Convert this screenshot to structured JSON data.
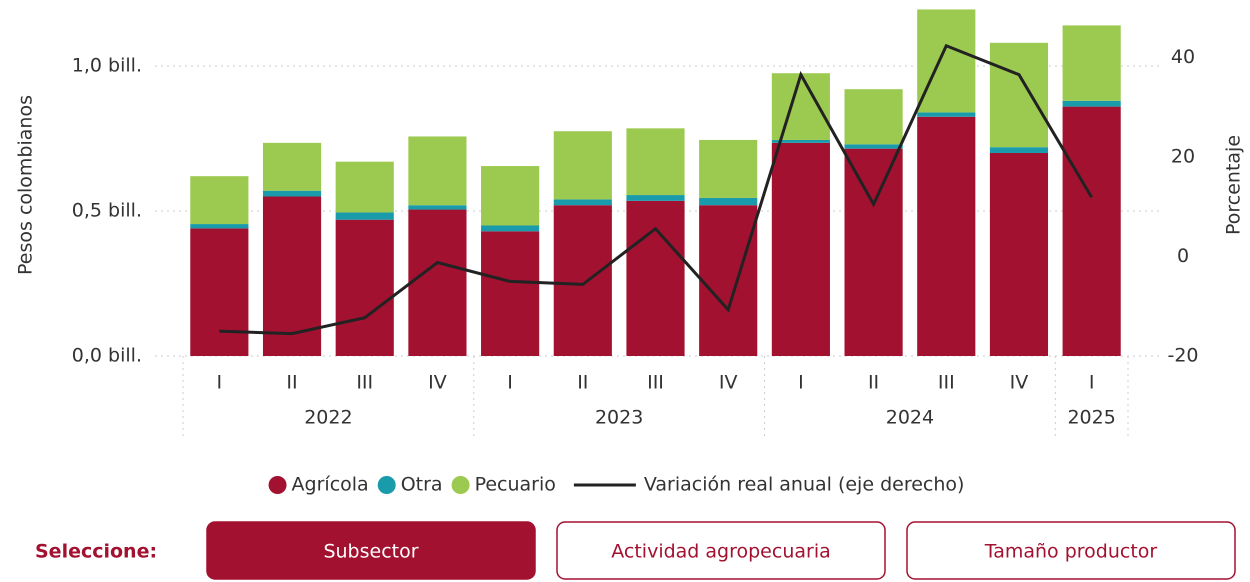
{
  "chart_data": {
    "type": "bar",
    "stacked": true,
    "y_label": "Pesos colombianos",
    "y2_label": "Porcentaje",
    "categories": [
      "I",
      "II",
      "III",
      "IV",
      "I",
      "II",
      "III",
      "IV",
      "I",
      "II",
      "III",
      "IV",
      "I"
    ],
    "groups": [
      "2022",
      null,
      null,
      null,
      "2023",
      null,
      null,
      null,
      "2024",
      null,
      null,
      null,
      "2025"
    ],
    "series": [
      {
        "name": "Agrícola",
        "color": "#a31130",
        "values": [
          0.44,
          0.55,
          0.47,
          0.505,
          0.43,
          0.52,
          0.535,
          0.52,
          0.735,
          0.715,
          0.825,
          0.7,
          0.86
        ]
      },
      {
        "name": "Otra",
        "color": "#1a9bab",
        "values": [
          0.015,
          0.02,
          0.025,
          0.015,
          0.02,
          0.02,
          0.02,
          0.025,
          0.01,
          0.015,
          0.015,
          0.02,
          0.02
        ]
      },
      {
        "name": "Pecuario",
        "color": "#9cc94f",
        "values": [
          0.165,
          0.165,
          0.175,
          0.237,
          0.205,
          0.235,
          0.23,
          0.2,
          0.23,
          0.19,
          0.355,
          0.36,
          0.26
        ]
      },
      {
        "name": "Variación real anual (eje derecho)",
        "type": "line",
        "axis": "y2",
        "color": "#222222",
        "values": [
          -15,
          -15.5,
          -12.3,
          -1.2,
          -5,
          -5.6,
          5.6,
          -10.7,
          36.6,
          10.5,
          42.4,
          36.6,
          11.9
        ]
      }
    ],
    "ylim": [
      0,
      1.2
    ],
    "yticks": [
      {
        "value": 0,
        "label": "0,0 bill."
      },
      {
        "value": 0.5,
        "label": "0,5 bill."
      },
      {
        "value": 1.0,
        "label": "1,0 bill."
      }
    ],
    "y2lim": [
      -20,
      50
    ],
    "y2ticks": [
      -20,
      0,
      20,
      40
    ],
    "grid": true,
    "legend": "bottom"
  },
  "controls": {
    "label": "Seleccione:",
    "buttons": [
      {
        "label": "Subsector",
        "active": true
      },
      {
        "label": "Actividad agropecuaria",
        "active": false
      },
      {
        "label": "Tamaño productor",
        "active": false
      }
    ]
  }
}
